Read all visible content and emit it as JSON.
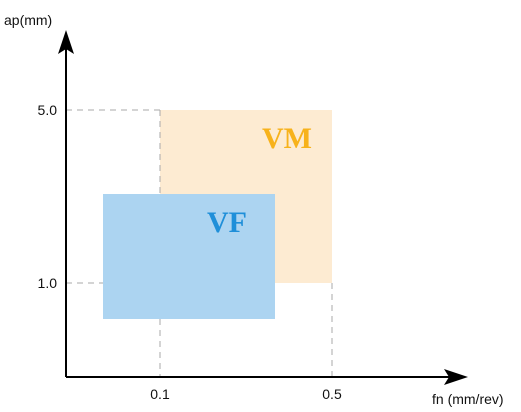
{
  "axes": {
    "y_title": "ap(mm)",
    "x_title": "fn (mm/rev)",
    "y_ticks": [
      "5.0",
      "1.0"
    ],
    "x_ticks": [
      "0.1",
      "0.5"
    ]
  },
  "regions": [
    {
      "id": "vm",
      "label": "VM",
      "fill_color": "#fdebd2",
      "label_color": "#f7b21b"
    },
    {
      "id": "vf",
      "label": "VF",
      "fill_color": "#acd4f1",
      "label_color": "#1f8fd9"
    }
  ],
  "colors": {
    "axis": "#000000",
    "guide": "#aaaaaa"
  }
}
